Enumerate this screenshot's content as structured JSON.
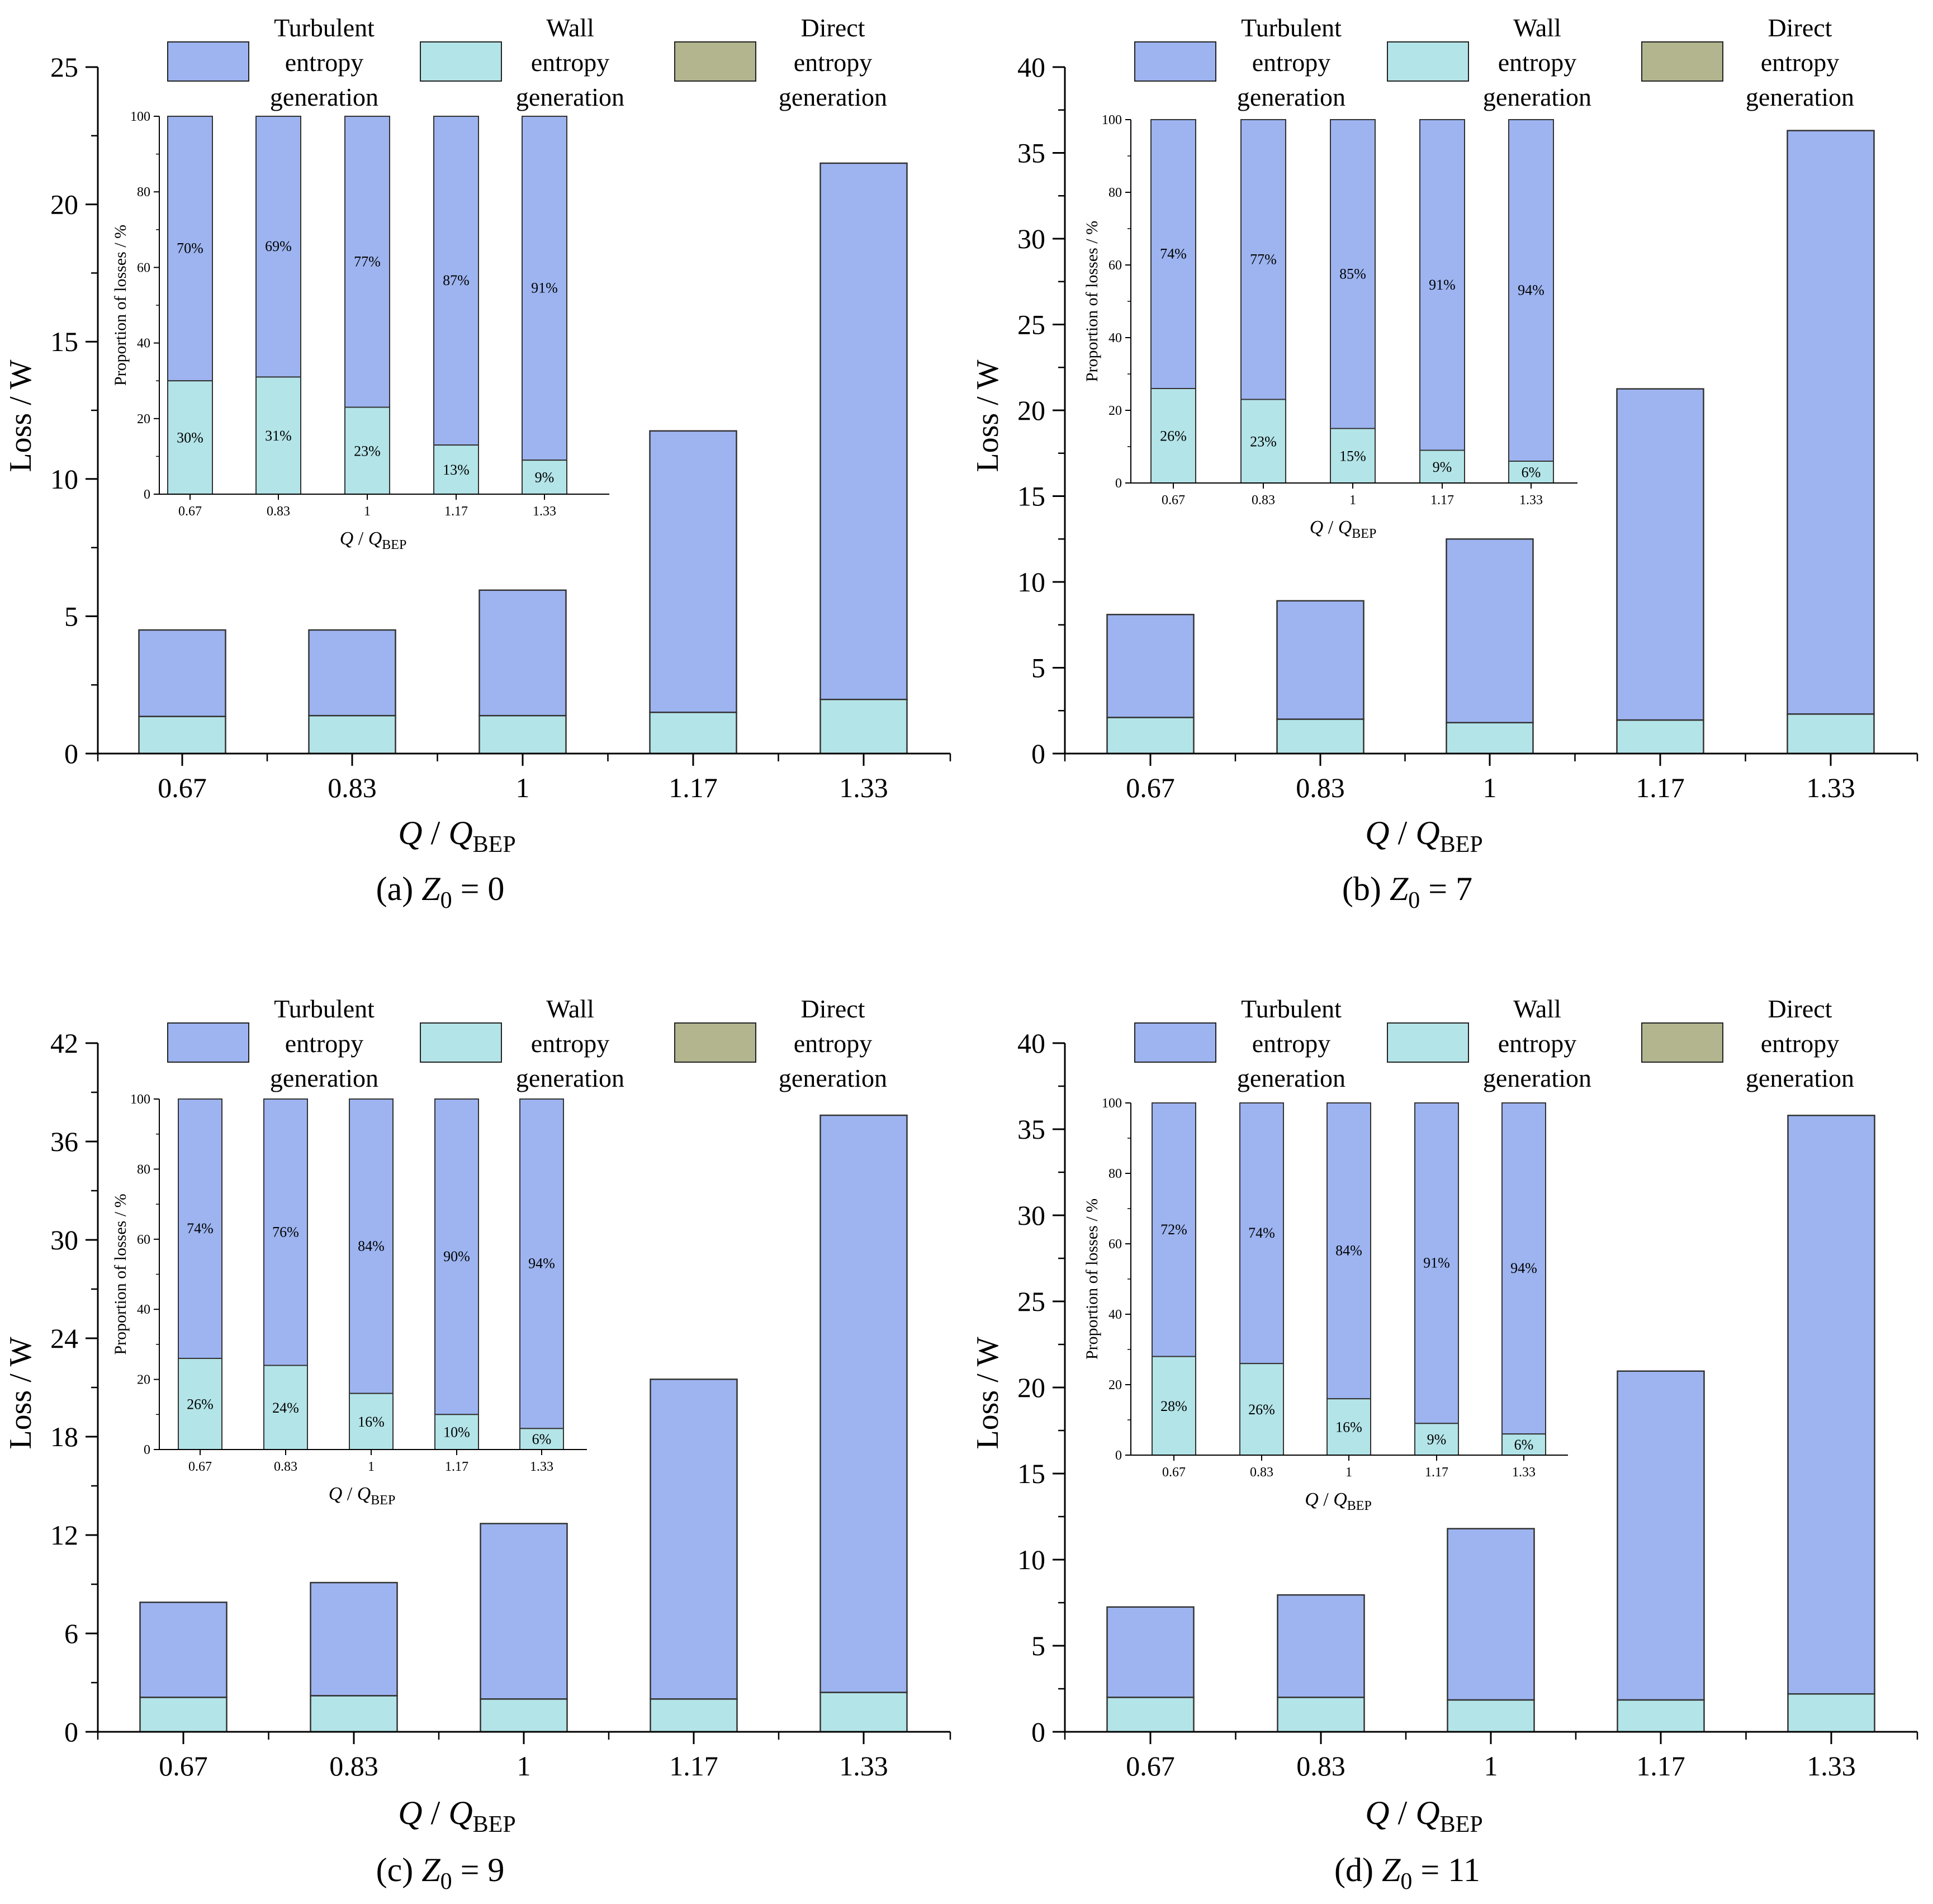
{
  "figure": {
    "legend": {
      "turbulent": [
        "Turbulent",
        "entropy",
        "generation"
      ],
      "wall": [
        "Wall",
        "entropy",
        "generation"
      ],
      "direct": [
        "Direct",
        "entropy",
        "generation"
      ]
    },
    "colors": {
      "turbulent": "#9db4f0",
      "wall": "#b3e4e8",
      "direct": "#b3b58f"
    }
  },
  "chart_data": [
    {
      "type": "bar",
      "stacked": true,
      "caption": {
        "prefix": "(a) ",
        "var": "Z",
        "sub": "0",
        "suffix": " = 0"
      },
      "title": "",
      "xlabel": {
        "main": "Q",
        "sep": " / ",
        "var": "Q",
        "sub": "BEP"
      },
      "ylabel": "Loss / W",
      "categories": [
        "0.67",
        "0.83",
        "1",
        "1.17",
        "1.33"
      ],
      "ylim": [
        0,
        25
      ],
      "yticks": [
        0,
        5,
        10,
        15,
        20,
        25
      ],
      "series": [
        {
          "name": "Wall entropy generation",
          "values": [
            1.35,
            1.38,
            1.38,
            1.5,
            1.97
          ]
        },
        {
          "name": "Turbulent entropy generation",
          "values": [
            3.15,
            3.12,
            4.57,
            10.25,
            19.53
          ]
        },
        {
          "name": "Direct entropy generation",
          "values": [
            0,
            0,
            0,
            0,
            0
          ]
        }
      ],
      "inset": {
        "ylabel": "Proportion of losses / %",
        "xlabel": {
          "main": "Q",
          "sep": " / ",
          "var": "Q",
          "sub": "BEP"
        },
        "ylim": [
          0,
          100
        ],
        "yticks": [
          0,
          20,
          40,
          60,
          80,
          100
        ],
        "wall": [
          30,
          31,
          23,
          13,
          9
        ],
        "turbulent": [
          70,
          69,
          77,
          87,
          91
        ],
        "wall_labels": [
          "30%",
          "31%",
          "23%",
          "13%",
          "9%"
        ],
        "turbulent_labels": [
          "70%",
          "69%",
          "77%",
          "87%",
          "91%"
        ]
      }
    },
    {
      "type": "bar",
      "stacked": true,
      "caption": {
        "prefix": "(b) ",
        "var": "Z",
        "sub": "0",
        "suffix": " = 7"
      },
      "title": "",
      "xlabel": {
        "main": "Q",
        "sep": " / ",
        "var": "Q",
        "sub": "BEP"
      },
      "ylabel": "Loss / W",
      "categories": [
        "0.67",
        "0.83",
        "1",
        "1.17",
        "1.33"
      ],
      "ylim": [
        0,
        40
      ],
      "yticks": [
        0,
        5,
        10,
        15,
        20,
        25,
        30,
        35,
        40
      ],
      "series": [
        {
          "name": "Wall entropy generation",
          "values": [
            2.1,
            2.0,
            1.8,
            1.95,
            2.3
          ]
        },
        {
          "name": "Turbulent entropy generation",
          "values": [
            6.0,
            6.9,
            10.7,
            19.3,
            34.0
          ]
        },
        {
          "name": "Direct entropy generation",
          "values": [
            0,
            0,
            0,
            0,
            0
          ]
        }
      ],
      "inset": {
        "ylabel": "Proportion of losses / %",
        "xlabel": {
          "main": "Q",
          "sep": " / ",
          "var": "Q",
          "sub": "BEP"
        },
        "ylim": [
          0,
          100
        ],
        "yticks": [
          0,
          20,
          40,
          60,
          80,
          100
        ],
        "wall": [
          26,
          23,
          15,
          9,
          6
        ],
        "turbulent": [
          74,
          77,
          85,
          91,
          94
        ],
        "wall_labels": [
          "26%",
          "23%",
          "15%",
          "9%",
          "6%"
        ],
        "turbulent_labels": [
          "74%",
          "77%",
          "85%",
          "91%",
          "94%"
        ]
      }
    },
    {
      "type": "bar",
      "stacked": true,
      "caption": {
        "prefix": "(c) ",
        "var": "Z",
        "sub": "0",
        "suffix": " = 9"
      },
      "title": "",
      "xlabel": {
        "main": "Q",
        "sep": " / ",
        "var": "Q",
        "sub": "BEP"
      },
      "ylabel": "Loss / W",
      "categories": [
        "0.67",
        "0.83",
        "1",
        "1.17",
        "1.33"
      ],
      "ylim": [
        0,
        42
      ],
      "yticks": [
        0,
        6,
        12,
        18,
        24,
        30,
        36,
        42
      ],
      "series": [
        {
          "name": "Wall entropy generation",
          "values": [
            2.1,
            2.2,
            2.0,
            2.0,
            2.4
          ]
        },
        {
          "name": "Turbulent entropy generation",
          "values": [
            5.8,
            6.9,
            10.7,
            19.5,
            35.2
          ]
        },
        {
          "name": "Direct entropy generation",
          "values": [
            0,
            0,
            0,
            0,
            0
          ]
        }
      ],
      "inset": {
        "ylabel": "Proportion of losses / %",
        "xlabel": {
          "main": "Q",
          "sep": " / ",
          "var": "Q",
          "sub": "BEP"
        },
        "ylim": [
          0,
          100
        ],
        "yticks": [
          0,
          20,
          40,
          60,
          80,
          100
        ],
        "wall": [
          26,
          24,
          16,
          10,
          6
        ],
        "turbulent": [
          74,
          76,
          84,
          90,
          94
        ],
        "wall_labels": [
          "26%",
          "24%",
          "16%",
          "10%",
          "6%"
        ],
        "turbulent_labels": [
          "74%",
          "76%",
          "84%",
          "90%",
          "94%"
        ]
      }
    },
    {
      "type": "bar",
      "stacked": true,
      "caption": {
        "prefix": "(d) ",
        "var": "Z",
        "sub": "0",
        "suffix": " = 11"
      },
      "title": "",
      "xlabel": {
        "main": "Q",
        "sep": " / ",
        "var": "Q",
        "sub": "BEP"
      },
      "ylabel": "Loss / W",
      "categories": [
        "0.67",
        "0.83",
        "1",
        "1.17",
        "1.33"
      ],
      "ylim": [
        0,
        40
      ],
      "yticks": [
        0,
        5,
        10,
        15,
        20,
        25,
        30,
        35,
        40
      ],
      "series": [
        {
          "name": "Wall entropy generation",
          "values": [
            2.0,
            2.0,
            1.85,
            1.85,
            2.2
          ]
        },
        {
          "name": "Turbulent entropy generation",
          "values": [
            5.25,
            5.95,
            9.95,
            19.1,
            33.6
          ]
        },
        {
          "name": "Direct entropy generation",
          "values": [
            0,
            0,
            0,
            0,
            0
          ]
        }
      ],
      "inset": {
        "ylabel": "Proportion of losses / %",
        "xlabel": {
          "main": "Q",
          "sep": " / ",
          "var": "Q",
          "sub": "BEP"
        },
        "ylim": [
          0,
          100
        ],
        "yticks": [
          0,
          20,
          40,
          60,
          80,
          100
        ],
        "wall": [
          28,
          26,
          16,
          9,
          6
        ],
        "turbulent": [
          72,
          74,
          84,
          91,
          94
        ],
        "wall_labels": [
          "28%",
          "26%",
          "16%",
          "9%",
          "6%"
        ],
        "turbulent_labels": [
          "72%",
          "74%",
          "84%",
          "91%",
          "94%"
        ]
      }
    }
  ]
}
